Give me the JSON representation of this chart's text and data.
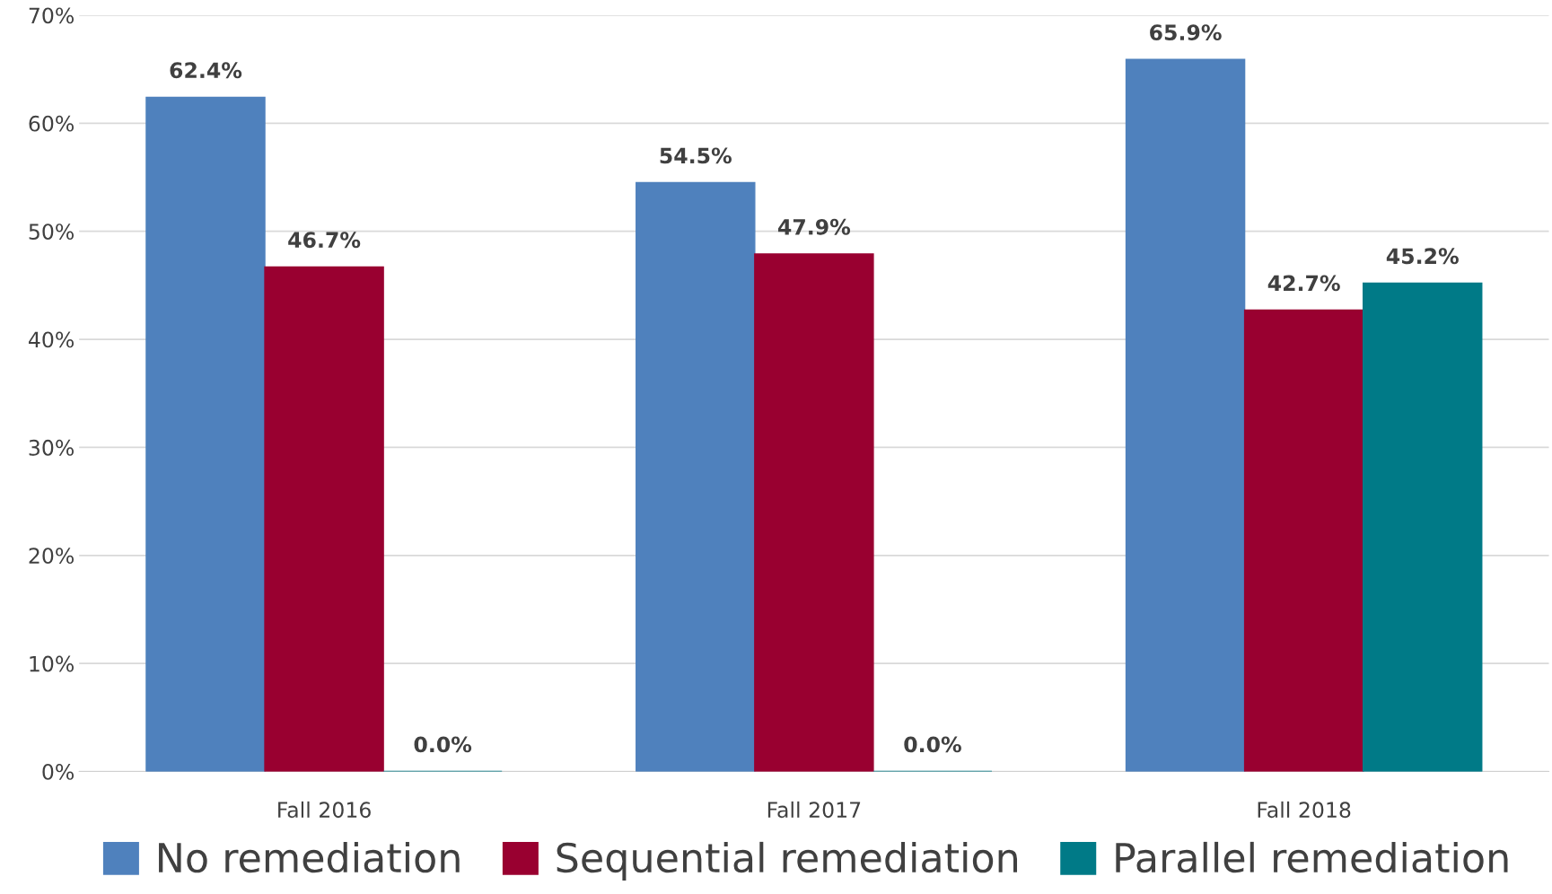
{
  "chart_data": {
    "type": "bar",
    "categories": [
      "Fall 2016",
      "Fall 2017",
      "Fall 2018"
    ],
    "series": [
      {
        "name": "No remediation",
        "color": "#4f81bd",
        "values": [
          62.4,
          54.5,
          65.9
        ],
        "value_labels": [
          "62.4%",
          "54.5%",
          "65.9%"
        ]
      },
      {
        "name": "Sequential remediation",
        "color": "#990030",
        "values": [
          46.7,
          47.9,
          42.7
        ],
        "value_labels": [
          "46.7%",
          "47.9%",
          "42.7%"
        ]
      },
      {
        "name": "Parallel remediation",
        "color": "#007a87",
        "values": [
          0,
          0,
          45.2
        ],
        "value_labels": [
          "0.0%",
          "0.0%",
          "45.2%"
        ]
      }
    ],
    "ylim": [
      0,
      70
    ],
    "yticks": [
      {
        "value": 0,
        "label": "0%"
      },
      {
        "value": 10,
        "label": "10%"
      },
      {
        "value": 20,
        "label": "20%"
      },
      {
        "value": 30,
        "label": "30%"
      },
      {
        "value": 40,
        "label": "40%"
      },
      {
        "value": 50,
        "label": "50%"
      },
      {
        "value": 60,
        "label": "60%"
      },
      {
        "value": 70,
        "label": "70%"
      }
    ],
    "grid": "y",
    "legend": "bottom"
  }
}
